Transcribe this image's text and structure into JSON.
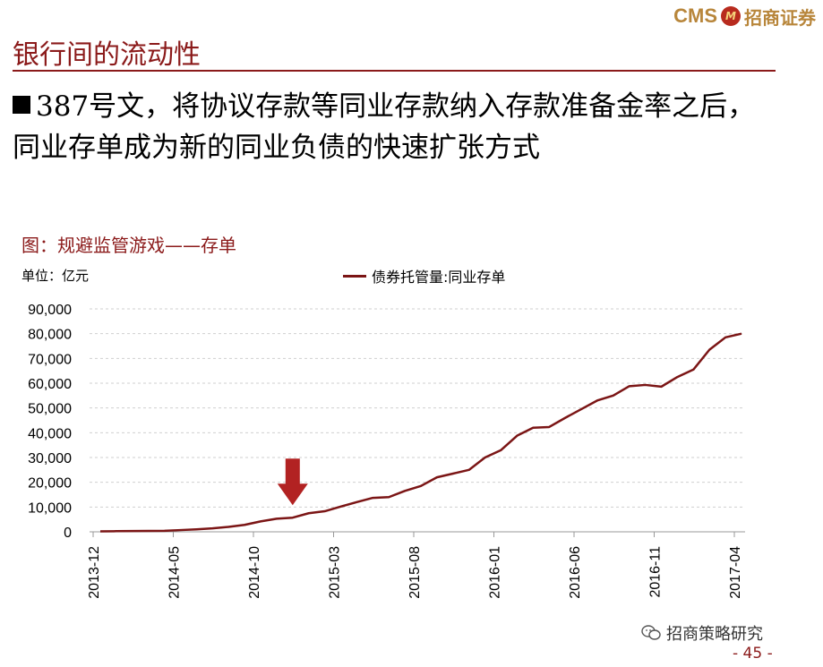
{
  "header": {
    "logo_en": "CMS",
    "logo_badge": "M",
    "logo_cn": "招商证券"
  },
  "slide": {
    "title": "银行间的流动性",
    "bullet": "387号文，将协议存款等同业存款纳入存款准备金率之后，同业存单成为新的同业负债的快速扩张方式",
    "figure_title": "图：规避监管游戏——存单",
    "unit": "单位：亿元",
    "watermark": "招商策略研究",
    "page_number": "- 45 -"
  },
  "colors": {
    "brand_red": "#8b1a1a",
    "series_line": "#7b1515",
    "arrow": "#b22222",
    "logo_gold": "#b8863b"
  },
  "chart_data": {
    "type": "line",
    "title": "",
    "xlabel": "",
    "ylabel": "",
    "ylim": [
      0,
      90000
    ],
    "yticks": [
      "0",
      "10,000",
      "20,000",
      "30,000",
      "40,000",
      "50,000",
      "60,000",
      "70,000",
      "80,000",
      "90,000"
    ],
    "xtick_labels": [
      "2013-12",
      "2014-05",
      "2014-10",
      "2015-03",
      "2015-08",
      "2016-01",
      "2016-06",
      "2016-11",
      "2017-04"
    ],
    "x": [
      "2013-12",
      "2014-01",
      "2014-02",
      "2014-03",
      "2014-04",
      "2014-05",
      "2014-06",
      "2014-07",
      "2014-08",
      "2014-09",
      "2014-10",
      "2014-11",
      "2014-12",
      "2015-01",
      "2015-02",
      "2015-03",
      "2015-04",
      "2015-05",
      "2015-06",
      "2015-07",
      "2015-08",
      "2015-09",
      "2015-10",
      "2015-11",
      "2015-12",
      "2016-01",
      "2016-02",
      "2016-03",
      "2016-04",
      "2016-05",
      "2016-06",
      "2016-07",
      "2016-08",
      "2016-09",
      "2016-10",
      "2016-11",
      "2016-12",
      "2017-01",
      "2017-02",
      "2017-03",
      "2017-04"
    ],
    "series": [
      {
        "name": "债券托管量:同业存单",
        "values": [
          200,
          250,
          300,
          350,
          400,
          700,
          1000,
          1400,
          2000,
          2800,
          4200,
          5300,
          5700,
          7500,
          8300,
          10200,
          12000,
          13700,
          14000,
          16500,
          18500,
          22000,
          23500,
          25000,
          30000,
          33000,
          38800,
          42000,
          42300,
          46000,
          49500,
          53000,
          55000,
          58800,
          59300,
          58600,
          62500,
          65500,
          73500,
          78500,
          80000
        ]
      }
    ],
    "annotations": [
      {
        "type": "arrow-down",
        "x": "2014-12",
        "y": 5700
      }
    ],
    "grid": "horizontal-dashed",
    "legend": "top"
  }
}
